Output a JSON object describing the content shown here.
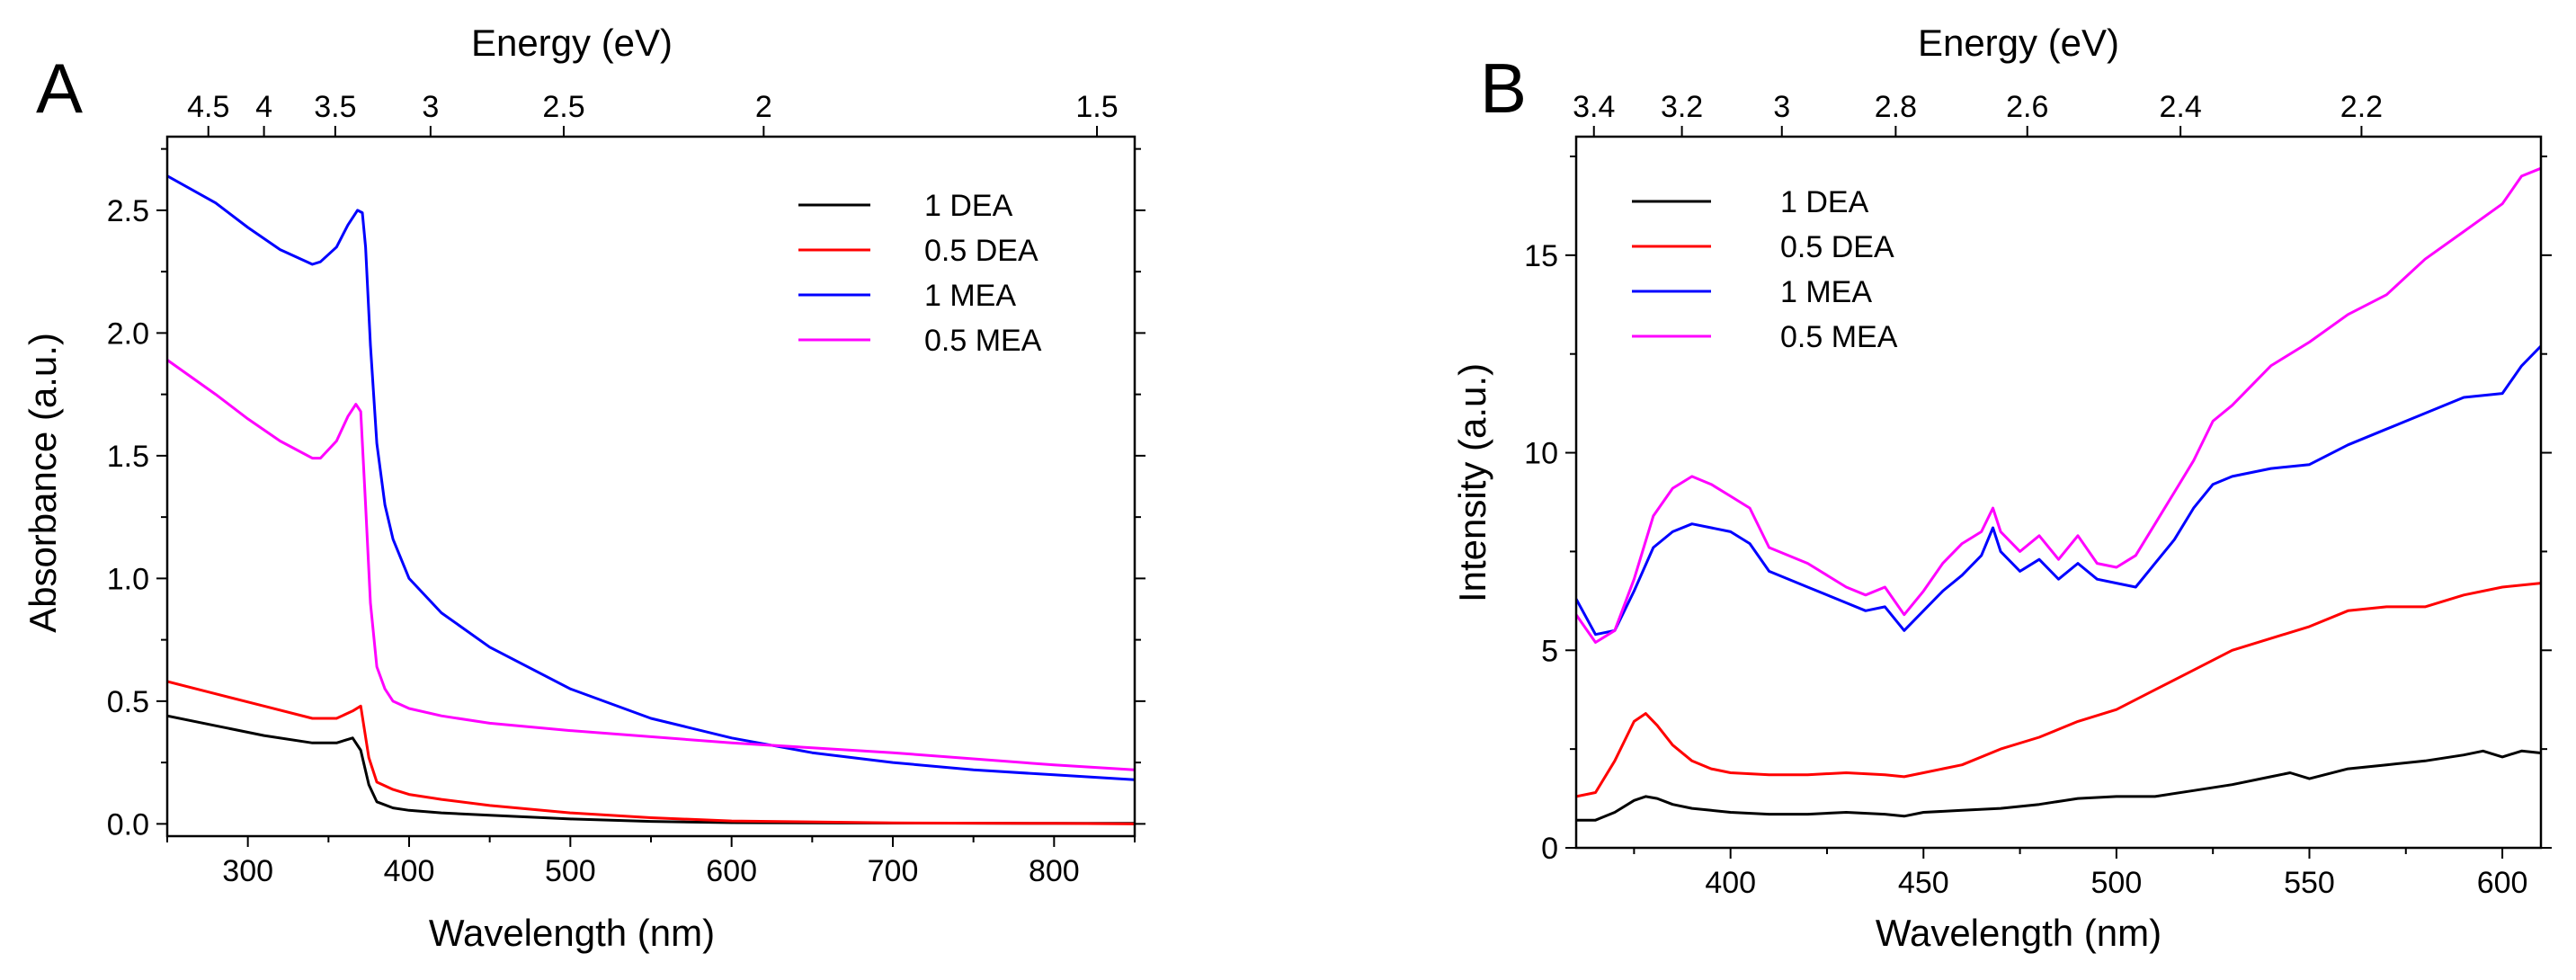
{
  "colors": {
    "black": "#000000",
    "red": "#ff0000",
    "blue": "#0000ff",
    "magenta": "#ff00ff"
  },
  "chart_data": [
    {
      "panel": "A",
      "type": "line",
      "xlabel": "Wavelength (nm)",
      "ylabel": "Absorbance (a.u.)",
      "top_label": "Energy (eV)",
      "xlim": [
        250,
        850
      ],
      "ylim": [
        -0.05,
        2.8
      ],
      "xticks": [
        300,
        400,
        500,
        600,
        700,
        800
      ],
      "yticks": [
        "0.0",
        "0.5",
        "1.0",
        "1.5",
        "2.0",
        "2.5"
      ],
      "top_ticks": [
        {
          "label": "4.5",
          "wavelength": 275.5
        },
        {
          "label": "4",
          "wavelength": 310.0
        },
        {
          "label": "3.5",
          "wavelength": 354.2
        },
        {
          "label": "3",
          "wavelength": 413.3
        },
        {
          "label": "2.5",
          "wavelength": 495.9
        },
        {
          "label": "2",
          "wavelength": 619.9
        },
        {
          "label": "1.5",
          "wavelength": 826.6
        }
      ],
      "legend": {
        "position": "top-right",
        "entries": [
          "1 DEA",
          "0.5 DEA",
          "1 MEA",
          "0.5 MEA"
        ]
      },
      "series": [
        {
          "name": "1 DEA",
          "color": "#000000",
          "x": [
            250,
            280,
            310,
            340,
            355,
            365,
            370,
            375,
            380,
            390,
            400,
            420,
            450,
            500,
            550,
            600,
            700,
            800,
            850
          ],
          "y": [
            0.44,
            0.4,
            0.36,
            0.33,
            0.33,
            0.35,
            0.3,
            0.16,
            0.09,
            0.065,
            0.055,
            0.045,
            0.035,
            0.02,
            0.01,
            0.005,
            0.003,
            0.002,
            0.002
          ]
        },
        {
          "name": "0.5 DEA",
          "color": "#ff0000",
          "x": [
            250,
            280,
            310,
            340,
            355,
            365,
            370,
            375,
            380,
            390,
            400,
            420,
            450,
            500,
            550,
            600,
            700,
            800,
            850
          ],
          "y": [
            0.58,
            0.53,
            0.48,
            0.43,
            0.43,
            0.46,
            0.48,
            0.27,
            0.17,
            0.14,
            0.12,
            0.1,
            0.075,
            0.045,
            0.025,
            0.012,
            0.004,
            0.002,
            0.0
          ]
        },
        {
          "name": "1 MEA",
          "color": "#0000ff",
          "x": [
            250,
            280,
            300,
            320,
            340,
            345,
            355,
            362,
            368,
            371,
            373,
            376,
            380,
            385,
            390,
            400,
            420,
            450,
            500,
            550,
            600,
            650,
            700,
            750,
            800,
            850
          ],
          "y": [
            2.64,
            2.53,
            2.43,
            2.34,
            2.28,
            2.29,
            2.35,
            2.44,
            2.5,
            2.49,
            2.35,
            1.95,
            1.55,
            1.3,
            1.16,
            1.0,
            0.86,
            0.72,
            0.55,
            0.43,
            0.35,
            0.29,
            0.25,
            0.22,
            0.2,
            0.18
          ]
        },
        {
          "name": "0.5 MEA",
          "color": "#ff00ff",
          "x": [
            250,
            280,
            300,
            320,
            340,
            345,
            355,
            362,
            367,
            370,
            373,
            376,
            380,
            385,
            390,
            400,
            420,
            450,
            500,
            600,
            700,
            800,
            850
          ],
          "y": [
            1.89,
            1.75,
            1.65,
            1.56,
            1.49,
            1.49,
            1.56,
            1.66,
            1.71,
            1.68,
            1.3,
            0.9,
            0.64,
            0.55,
            0.5,
            0.47,
            0.44,
            0.41,
            0.38,
            0.33,
            0.29,
            0.24,
            0.22
          ]
        }
      ]
    },
    {
      "panel": "B",
      "type": "line",
      "xlabel": "Wavelength (nm)",
      "ylabel": "Intensity (a.u.)",
      "top_label": "Energy (eV)",
      "xlim": [
        360,
        610
      ],
      "ylim": [
        0,
        18
      ],
      "xticks": [
        400,
        450,
        500,
        550,
        600
      ],
      "yticks": [
        "0",
        "5",
        "10",
        "15"
      ],
      "top_ticks": [
        {
          "label": "3.4",
          "wavelength": 364.6
        },
        {
          "label": "3.2",
          "wavelength": 387.4
        },
        {
          "label": "3",
          "wavelength": 413.3
        },
        {
          "label": "2.8",
          "wavelength": 442.8
        },
        {
          "label": "2.6",
          "wavelength": 476.9
        },
        {
          "label": "2.4",
          "wavelength": 516.6
        },
        {
          "label": "2.2",
          "wavelength": 563.5
        }
      ],
      "legend": {
        "position": "top-left",
        "entries": [
          "1 DEA",
          "0.5 DEA",
          "1 MEA",
          "0.5 MEA"
        ]
      },
      "series": [
        {
          "name": "1 DEA",
          "color": "#000000",
          "x": [
            360,
            365,
            370,
            375,
            378,
            381,
            385,
            390,
            395,
            400,
            410,
            420,
            430,
            440,
            445,
            450,
            460,
            470,
            480,
            490,
            500,
            510,
            520,
            530,
            540,
            545,
            550,
            560,
            570,
            580,
            590,
            595,
            600,
            605,
            610
          ],
          "y": [
            0.7,
            0.7,
            0.9,
            1.2,
            1.3,
            1.25,
            1.1,
            1.0,
            0.95,
            0.9,
            0.85,
            0.85,
            0.9,
            0.85,
            0.8,
            0.9,
            0.95,
            1.0,
            1.1,
            1.25,
            1.3,
            1.3,
            1.45,
            1.6,
            1.8,
            1.9,
            1.75,
            2.0,
            2.1,
            2.2,
            2.35,
            2.45,
            2.3,
            2.45,
            2.4
          ]
        },
        {
          "name": "0.5 DEA",
          "color": "#ff0000",
          "x": [
            360,
            365,
            370,
            375,
            378,
            381,
            385,
            390,
            395,
            400,
            410,
            420,
            430,
            440,
            445,
            450,
            460,
            470,
            480,
            490,
            500,
            510,
            520,
            530,
            540,
            550,
            560,
            570,
            580,
            590,
            600,
            610
          ],
          "y": [
            1.3,
            1.4,
            2.2,
            3.2,
            3.4,
            3.1,
            2.6,
            2.2,
            2.0,
            1.9,
            1.85,
            1.85,
            1.9,
            1.85,
            1.8,
            1.9,
            2.1,
            2.5,
            2.8,
            3.2,
            3.5,
            4.0,
            4.5,
            5.0,
            5.3,
            5.6,
            6.0,
            6.1,
            6.1,
            6.4,
            6.6,
            6.7
          ]
        },
        {
          "name": "1 MEA",
          "color": "#0000ff",
          "x": [
            360,
            365,
            370,
            375,
            380,
            385,
            390,
            395,
            400,
            405,
            410,
            420,
            430,
            435,
            440,
            445,
            450,
            455,
            460,
            465,
            468,
            470,
            475,
            480,
            485,
            490,
            495,
            500,
            505,
            510,
            515,
            520,
            525,
            530,
            540,
            550,
            560,
            570,
            580,
            590,
            600,
            605,
            610
          ],
          "y": [
            6.3,
            5.4,
            5.5,
            6.5,
            7.6,
            8.0,
            8.2,
            8.1,
            8.0,
            7.7,
            7.0,
            6.6,
            6.2,
            6.0,
            6.1,
            5.5,
            6.0,
            6.5,
            6.9,
            7.4,
            8.1,
            7.5,
            7.0,
            7.3,
            6.8,
            7.2,
            6.8,
            6.7,
            6.6,
            7.2,
            7.8,
            8.6,
            9.2,
            9.4,
            9.6,
            9.7,
            10.2,
            10.6,
            11.0,
            11.4,
            11.5,
            12.2,
            12.7
          ]
        },
        {
          "name": "0.5 MEA",
          "color": "#ff00ff",
          "x": [
            360,
            365,
            370,
            375,
            380,
            385,
            390,
            395,
            400,
            405,
            410,
            420,
            430,
            435,
            440,
            445,
            450,
            455,
            460,
            465,
            468,
            470,
            475,
            480,
            485,
            490,
            495,
            500,
            505,
            510,
            515,
            520,
            525,
            530,
            540,
            550,
            560,
            570,
            580,
            590,
            600,
            605,
            610
          ],
          "y": [
            5.9,
            5.2,
            5.5,
            6.8,
            8.4,
            9.1,
            9.4,
            9.2,
            8.9,
            8.6,
            7.6,
            7.2,
            6.6,
            6.4,
            6.6,
            5.9,
            6.5,
            7.2,
            7.7,
            8.0,
            8.6,
            8.0,
            7.5,
            7.9,
            7.3,
            7.9,
            7.2,
            7.1,
            7.4,
            8.2,
            9.0,
            9.8,
            10.8,
            11.2,
            12.2,
            12.8,
            13.5,
            14.0,
            14.9,
            15.6,
            16.3,
            17.0,
            17.2
          ]
        }
      ]
    }
  ]
}
